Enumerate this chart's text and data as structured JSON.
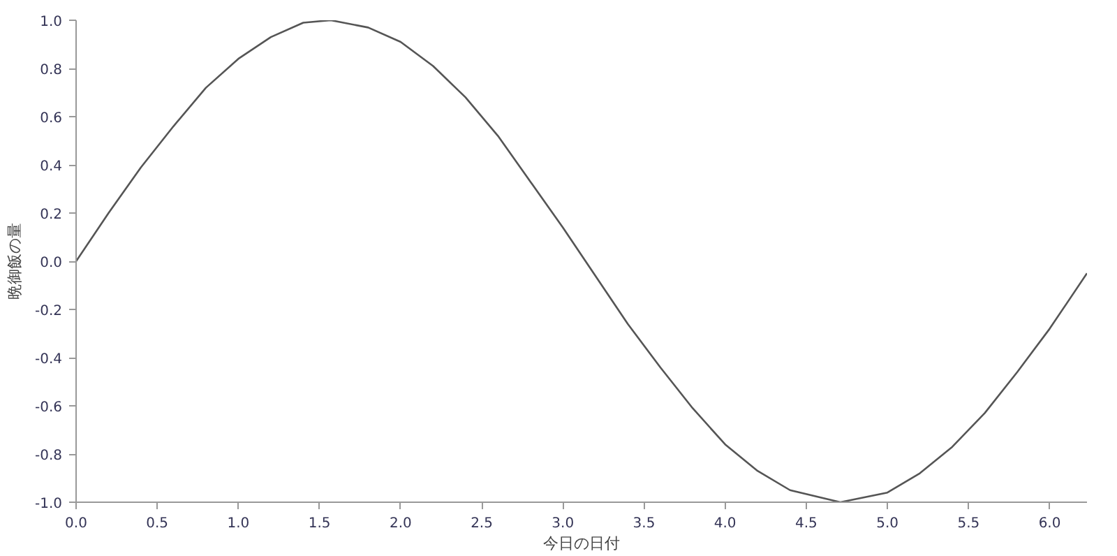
{
  "chart_data": {
    "type": "line",
    "xlabel": "今日の日付",
    "ylabel": "晩御飯の量",
    "x": [
      0,
      0.2,
      0.4,
      0.6,
      0.8,
      1.0,
      1.2,
      1.4,
      1.57,
      1.8,
      2.0,
      2.2,
      2.4,
      2.6,
      2.8,
      3.0,
      3.2,
      3.4,
      3.6,
      3.8,
      4.0,
      4.2,
      4.4,
      4.71,
      5.0,
      5.2,
      5.4,
      5.6,
      5.8,
      6.0,
      6.23
    ],
    "series": [
      {
        "color": "#555555",
        "values": [
          0,
          0.2,
          0.39,
          0.56,
          0.72,
          0.84,
          0.93,
          0.99,
          1.0,
          0.97,
          0.91,
          0.81,
          0.68,
          0.52,
          0.33,
          0.14,
          -0.06,
          -0.26,
          -0.44,
          -0.61,
          -0.76,
          -0.87,
          -0.95,
          -1.0,
          -0.96,
          -0.88,
          -0.77,
          -0.63,
          -0.46,
          -0.28,
          -0.05
        ]
      }
    ],
    "xlim": [
      0,
      6.23
    ],
    "ylim": [
      -1,
      1
    ],
    "xticks": [
      {
        "value": 0,
        "label": "0.0"
      },
      0.5,
      {
        "value": 1,
        "label": "1.0"
      },
      1.5,
      {
        "value": 2,
        "label": "2.0"
      },
      2.5,
      {
        "value": 3,
        "label": "3.0"
      },
      3.5,
      {
        "value": 4,
        "label": "4.0"
      },
      4.5,
      {
        "value": 5,
        "label": "5.0"
      },
      5.5,
      {
        "value": 6,
        "label": "6.0"
      }
    ],
    "yticks": [
      {
        "value": -1,
        "label": "-1.0"
      },
      -0.8,
      -0.6,
      -0.4,
      -0.2,
      {
        "value": 0,
        "label": "0.0"
      },
      0.2,
      0.4,
      0.6,
      0.8,
      {
        "value": 1,
        "label": "1.0"
      }
    ],
    "grid": false,
    "line_style": "solid"
  }
}
